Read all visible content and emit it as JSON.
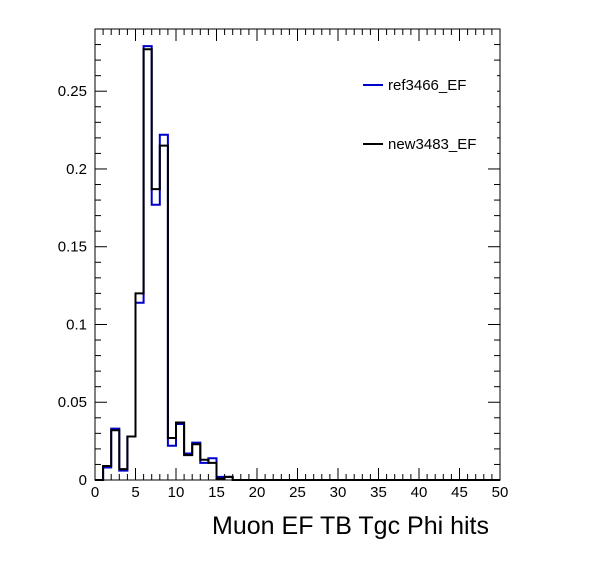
{
  "chart_data": {
    "type": "bar",
    "histogram": true,
    "xlabel": "Muon EF TB Tgc Phi hits",
    "ylabel": "",
    "xlim": [
      0,
      50
    ],
    "ylim": [
      0,
      0.29
    ],
    "bin_width": 1,
    "x_ticks": [
      "0",
      "5",
      "10",
      "15",
      "20",
      "25",
      "30",
      "35",
      "40",
      "45",
      "50"
    ],
    "y_ticks": [
      "0",
      "0.05",
      "0.1",
      "0.15",
      "0.2",
      "0.25"
    ],
    "y_tick_values": [
      0,
      0.05,
      0.1,
      0.15,
      0.2,
      0.25
    ],
    "grid": false,
    "legend_position": "top-right",
    "series": [
      {
        "name": "ref3466_EF",
        "color": "#0000cc",
        "values": [
          0.0,
          0.008,
          0.033,
          0.006,
          0.028,
          0.114,
          0.279,
          0.177,
          0.222,
          0.022,
          0.036,
          0.017,
          0.024,
          0.011,
          0.014,
          0.002,
          0.002,
          0,
          0,
          0,
          0,
          0,
          0,
          0,
          0,
          0,
          0,
          0,
          0,
          0,
          0,
          0,
          0,
          0,
          0,
          0,
          0,
          0,
          0,
          0,
          0,
          0,
          0,
          0,
          0,
          0,
          0,
          0,
          0,
          0
        ]
      },
      {
        "name": "new3483_EF",
        "color": "#000000",
        "values": [
          0.0,
          0.009,
          0.032,
          0.007,
          0.028,
          0.12,
          0.277,
          0.187,
          0.215,
          0.027,
          0.037,
          0.016,
          0.023,
          0.013,
          0.011,
          0.001,
          0.002,
          0,
          0,
          0,
          0,
          0,
          0,
          0,
          0,
          0,
          0,
          0,
          0,
          0,
          0,
          0,
          0,
          0,
          0,
          0,
          0,
          0,
          0,
          0,
          0,
          0,
          0,
          0,
          0,
          0,
          0,
          0,
          0,
          0
        ]
      }
    ]
  }
}
